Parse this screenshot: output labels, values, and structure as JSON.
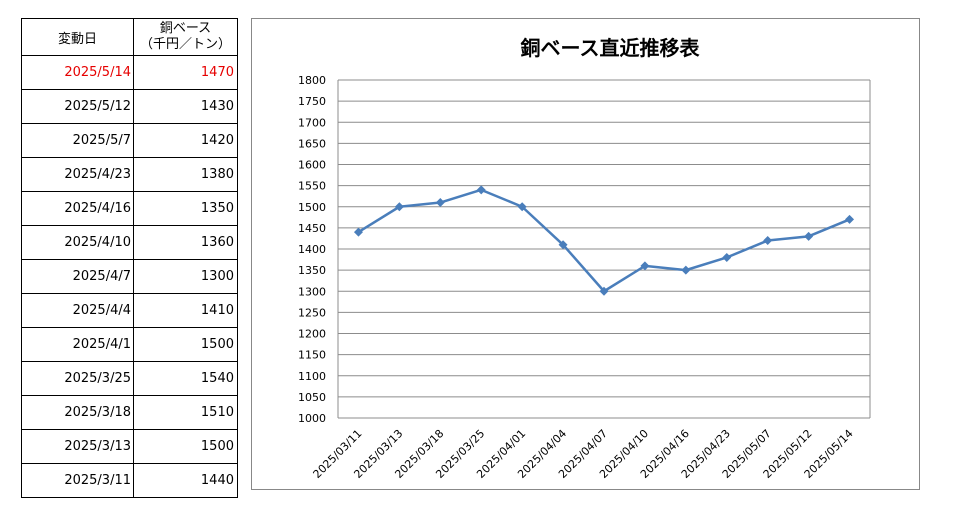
{
  "table": {
    "header_date": "変動日",
    "header_price_line1": "銅ベース",
    "header_price_line2": "（千円／トン）",
    "rows": [
      {
        "date": "2025/5/14",
        "price": "1470",
        "highlight": true
      },
      {
        "date": "2025/5/12",
        "price": "1430",
        "highlight": false
      },
      {
        "date": "2025/5/7",
        "price": "1420",
        "highlight": false
      },
      {
        "date": "2025/4/23",
        "price": "1380",
        "highlight": false
      },
      {
        "date": "2025/4/16",
        "price": "1350",
        "highlight": false
      },
      {
        "date": "2025/4/10",
        "price": "1360",
        "highlight": false
      },
      {
        "date": "2025/4/7",
        "price": "1300",
        "highlight": false
      },
      {
        "date": "2025/4/4",
        "price": "1410",
        "highlight": false
      },
      {
        "date": "2025/4/1",
        "price": "1500",
        "highlight": false
      },
      {
        "date": "2025/3/25",
        "price": "1540",
        "highlight": false
      },
      {
        "date": "2025/3/18",
        "price": "1510",
        "highlight": false
      },
      {
        "date": "2025/3/13",
        "price": "1500",
        "highlight": false
      },
      {
        "date": "2025/3/11",
        "price": "1440",
        "highlight": false
      }
    ],
    "highlight_color": "#e60000"
  },
  "chart_data": {
    "type": "line",
    "title": "銅ベース直近推移表",
    "xlabel": "",
    "ylabel": "",
    "x": [
      "2025/03/11",
      "2025/03/13",
      "2025/03/18",
      "2025/03/25",
      "2025/04/01",
      "2025/04/04",
      "2025/04/07",
      "2025/04/10",
      "2025/04/16",
      "2025/04/23",
      "2025/05/07",
      "2025/05/12",
      "2025/05/14"
    ],
    "series": [
      {
        "values": [
          1440,
          1500,
          1510,
          1540,
          1500,
          1410,
          1300,
          1360,
          1350,
          1380,
          1420,
          1430,
          1470
        ],
        "color": "#4a7ebb",
        "marker": "diamond"
      }
    ],
    "ylim": [
      1000,
      1800
    ],
    "yticks": [
      1000,
      1050,
      1100,
      1150,
      1200,
      1250,
      1300,
      1350,
      1400,
      1450,
      1500,
      1550,
      1600,
      1650,
      1700,
      1750,
      1800
    ],
    "grid": true,
    "legend": "none"
  }
}
